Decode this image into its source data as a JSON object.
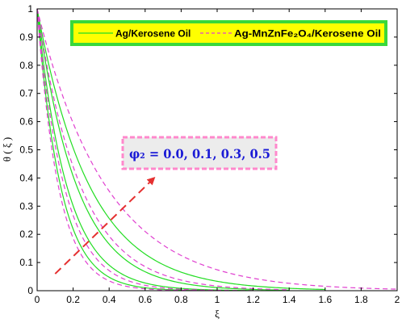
{
  "chart_data": {
    "type": "line",
    "xlabel": "ξ",
    "ylabel": "θ ( ξ )",
    "xlim": [
      0,
      2
    ],
    "ylim": [
      0,
      1
    ],
    "xticks": [
      0,
      0.2,
      0.4,
      0.6,
      0.8,
      1,
      1.2,
      1.4,
      1.6,
      1.8,
      2
    ],
    "xtick_labels": [
      "0",
      "0.2",
      "0.4",
      "0.6",
      "0.8",
      "1",
      "1.2",
      "1.4",
      "1.6",
      "1.8",
      "2"
    ],
    "yticks": [
      0,
      0.1,
      0.2,
      0.3,
      0.4,
      0.5,
      0.6,
      0.7,
      0.8,
      0.9,
      1
    ],
    "ytick_labels": [
      "0",
      "0.1",
      "0.2",
      "0.3",
      "0.4",
      "0.5",
      "0.6",
      "0.7",
      "0.8",
      "0.9",
      "1"
    ],
    "grid": false,
    "legend": {
      "placement": "top-right",
      "entries": [
        {
          "label": "Ag/Kerosene Oil",
          "color": "#22dd22",
          "style": "solid"
        },
        {
          "label": "Ag-MnZnFe₂O₄/Kerosene Oil",
          "color": "#e040d0",
          "style": "dashed"
        }
      ]
    },
    "annotation": {
      "text": "φ₂ = 0.0, 0.1, 0.3, 0.5",
      "arrow_from": [
        0.1,
        0.06
      ],
      "arrow_to": [
        0.65,
        0.4
      ],
      "arrow_color": "#e53030"
    },
    "series": [
      {
        "group": "Ag/Kerosene Oil",
        "color": "#22dd22",
        "style": "solid",
        "k": 7.6,
        "x": [
          0,
          0.05,
          0.1,
          0.15,
          0.2,
          0.3,
          0.4,
          0.5,
          0.6,
          0.8,
          1.0,
          1.2
        ],
        "y": [
          1.0,
          0.684,
          0.468,
          0.32,
          0.219,
          0.102,
          0.048,
          0.022,
          0.01,
          0.002,
          0.0,
          0.0
        ]
      },
      {
        "group": "Ag/Kerosene Oil",
        "color": "#22dd22",
        "style": "solid",
        "k": 6.0,
        "x": [
          0,
          0.05,
          0.1,
          0.15,
          0.2,
          0.3,
          0.4,
          0.5,
          0.6,
          0.8,
          1.0,
          1.2
        ],
        "y": [
          1.0,
          0.741,
          0.549,
          0.407,
          0.301,
          0.165,
          0.091,
          0.05,
          0.027,
          0.008,
          0.002,
          0.0
        ]
      },
      {
        "group": "Ag/Kerosene Oil",
        "color": "#22dd22",
        "style": "solid",
        "k": 4.5,
        "x": [
          0,
          0.05,
          0.1,
          0.15,
          0.2,
          0.3,
          0.4,
          0.5,
          0.6,
          0.8,
          1.0,
          1.2,
          1.4
        ],
        "y": [
          1.0,
          0.799,
          0.638,
          0.509,
          0.407,
          0.259,
          0.165,
          0.105,
          0.067,
          0.027,
          0.011,
          0.005,
          0.002
        ]
      },
      {
        "group": "Ag/Kerosene Oil",
        "color": "#22dd22",
        "style": "solid",
        "k": 3.4,
        "x": [
          0,
          0.05,
          0.1,
          0.15,
          0.2,
          0.3,
          0.4,
          0.5,
          0.6,
          0.8,
          1.0,
          1.2,
          1.4,
          1.6
        ],
        "y": [
          1.0,
          0.844,
          0.712,
          0.6,
          0.507,
          0.361,
          0.257,
          0.183,
          0.13,
          0.066,
          0.033,
          0.017,
          0.009,
          0.004
        ]
      },
      {
        "group": "Ag-MnZnFe₂O₄/Kerosene Oil",
        "color": "#e040d0",
        "style": "dashed",
        "k": 8.4,
        "x": [
          0,
          0.05,
          0.1,
          0.15,
          0.2,
          0.3,
          0.4,
          0.5,
          0.6,
          0.8,
          1.0
        ],
        "y": [
          1.0,
          0.657,
          0.432,
          0.284,
          0.186,
          0.08,
          0.035,
          0.015,
          0.006,
          0.001,
          0.0
        ]
      },
      {
        "group": "Ag-MnZnFe₂O₄/Kerosene Oil",
        "color": "#e040d0",
        "style": "dashed",
        "k": 6.6,
        "x": [
          0,
          0.05,
          0.1,
          0.15,
          0.2,
          0.3,
          0.4,
          0.5,
          0.6,
          0.8,
          1.0,
          1.2
        ],
        "y": [
          1.0,
          0.719,
          0.517,
          0.372,
          0.267,
          0.138,
          0.071,
          0.037,
          0.019,
          0.005,
          0.001,
          0.0
        ]
      },
      {
        "group": "Ag-MnZnFe₂O₄/Kerosene Oil",
        "color": "#e040d0",
        "style": "dashed",
        "k": 4.1,
        "x": [
          0,
          0.05,
          0.1,
          0.15,
          0.2,
          0.3,
          0.4,
          0.5,
          0.6,
          0.8,
          1.0,
          1.2,
          1.4
        ],
        "y": [
          1.0,
          0.815,
          0.664,
          0.541,
          0.44,
          0.292,
          0.194,
          0.129,
          0.086,
          0.038,
          0.017,
          0.007,
          0.003
        ]
      },
      {
        "group": "Ag-MnZnFe₂O₄/Kerosene Oil",
        "color": "#e040d0",
        "style": "dashed",
        "k": 2.6,
        "x": [
          0,
          0.05,
          0.1,
          0.15,
          0.2,
          0.3,
          0.4,
          0.5,
          0.6,
          0.8,
          1.0,
          1.2,
          1.4,
          1.6,
          1.8,
          2.0
        ],
        "y": [
          1.0,
          0.878,
          0.771,
          0.677,
          0.595,
          0.458,
          0.353,
          0.273,
          0.21,
          0.125,
          0.074,
          0.044,
          0.026,
          0.016,
          0.009,
          0.006
        ]
      }
    ]
  }
}
